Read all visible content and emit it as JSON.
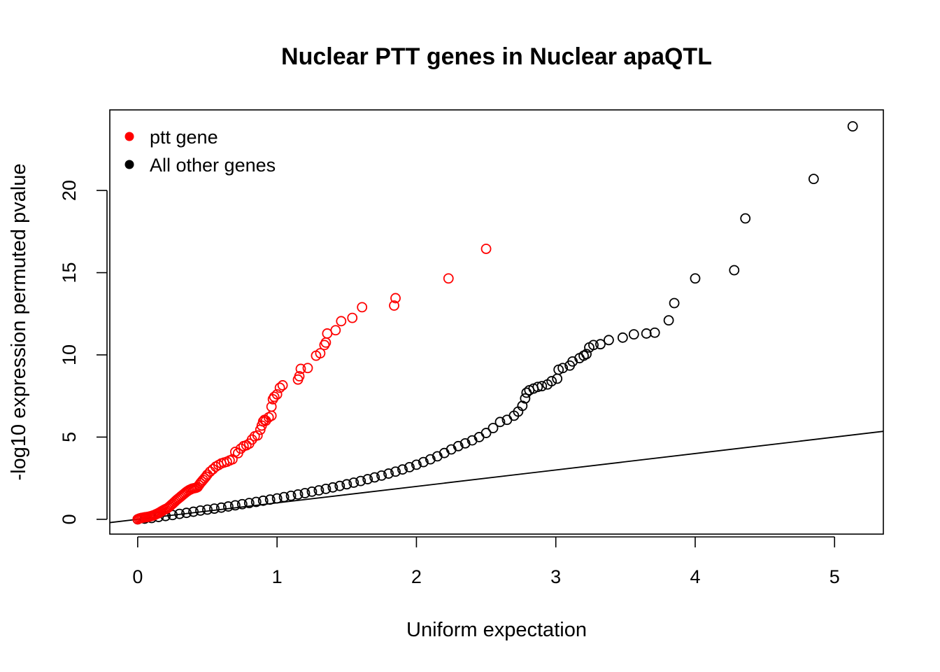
{
  "chart_data": {
    "type": "scatter",
    "title": "Nuclear PTT genes in Nuclear apaQTL",
    "xlabel": "Uniform expectation",
    "ylabel": "-log10 expression permuted pvalue",
    "xlim": [
      -0.2,
      5.35
    ],
    "ylim": [
      -0.9,
      24.9
    ],
    "x_ticks": [
      0,
      1,
      2,
      3,
      4,
      5
    ],
    "y_ticks": [
      0,
      5,
      10,
      15,
      20
    ],
    "grid": false,
    "legend_position": "top-left",
    "reference_line": {
      "slope": 1,
      "intercept": 0,
      "color": "#000000"
    },
    "series": [
      {
        "name": "ptt gene",
        "color": "#ff0000",
        "marker": "open-circle",
        "points": [
          [
            0.0,
            0.0
          ],
          [
            0.01,
            0.04
          ],
          [
            0.02,
            0.07
          ],
          [
            0.03,
            0.09
          ],
          [
            0.04,
            0.1
          ],
          [
            0.05,
            0.12
          ],
          [
            0.06,
            0.13
          ],
          [
            0.07,
            0.14
          ],
          [
            0.08,
            0.16
          ],
          [
            0.09,
            0.18
          ],
          [
            0.1,
            0.2
          ],
          [
            0.11,
            0.23
          ],
          [
            0.12,
            0.26
          ],
          [
            0.13,
            0.3
          ],
          [
            0.14,
            0.34
          ],
          [
            0.15,
            0.38
          ],
          [
            0.16,
            0.43
          ],
          [
            0.17,
            0.48
          ],
          [
            0.18,
            0.53
          ],
          [
            0.19,
            0.58
          ],
          [
            0.2,
            0.62
          ],
          [
            0.21,
            0.66
          ],
          [
            0.22,
            0.72
          ],
          [
            0.23,
            0.79
          ],
          [
            0.24,
            0.87
          ],
          [
            0.25,
            0.94
          ],
          [
            0.26,
            1.02
          ],
          [
            0.27,
            1.1
          ],
          [
            0.28,
            1.18
          ],
          [
            0.29,
            1.25
          ],
          [
            0.3,
            1.32
          ],
          [
            0.31,
            1.39
          ],
          [
            0.32,
            1.46
          ],
          [
            0.33,
            1.53
          ],
          [
            0.34,
            1.6
          ],
          [
            0.35,
            1.67
          ],
          [
            0.36,
            1.73
          ],
          [
            0.37,
            1.78
          ],
          [
            0.38,
            1.82
          ],
          [
            0.39,
            1.86
          ],
          [
            0.4,
            1.88
          ],
          [
            0.41,
            1.9
          ],
          [
            0.42,
            1.92
          ],
          [
            0.43,
            1.96
          ],
          [
            0.44,
            2.08
          ],
          [
            0.45,
            2.2
          ],
          [
            0.46,
            2.3
          ],
          [
            0.47,
            2.4
          ],
          [
            0.48,
            2.5
          ],
          [
            0.49,
            2.6
          ],
          [
            0.5,
            2.72
          ],
          [
            0.52,
            2.9
          ],
          [
            0.54,
            3.05
          ],
          [
            0.56,
            3.2
          ],
          [
            0.58,
            3.3
          ],
          [
            0.6,
            3.4
          ],
          [
            0.62,
            3.45
          ],
          [
            0.64,
            3.5
          ],
          [
            0.66,
            3.58
          ],
          [
            0.68,
            3.65
          ],
          [
            0.7,
            4.1
          ],
          [
            0.72,
            4.02
          ],
          [
            0.74,
            4.3
          ],
          [
            0.76,
            4.45
          ],
          [
            0.78,
            4.5
          ],
          [
            0.8,
            4.6
          ],
          [
            0.82,
            4.85
          ],
          [
            0.84,
            5.05
          ],
          [
            0.86,
            5.1
          ],
          [
            0.88,
            5.45
          ],
          [
            0.89,
            5.7
          ],
          [
            0.9,
            5.95
          ],
          [
            0.91,
            6.05
          ],
          [
            0.92,
            6.0
          ],
          [
            0.94,
            6.2
          ],
          [
            0.96,
            6.3
          ],
          [
            0.96,
            6.85
          ],
          [
            0.97,
            7.3
          ],
          [
            0.98,
            7.45
          ],
          [
            1.0,
            7.6
          ],
          [
            1.02,
            8.0
          ],
          [
            1.04,
            8.15
          ],
          [
            1.15,
            8.5
          ],
          [
            1.16,
            8.7
          ],
          [
            1.17,
            9.15
          ],
          [
            1.22,
            9.2
          ],
          [
            1.28,
            9.95
          ],
          [
            1.31,
            10.1
          ],
          [
            1.34,
            10.6
          ],
          [
            1.35,
            10.75
          ],
          [
            1.36,
            11.3
          ],
          [
            1.42,
            11.5
          ],
          [
            1.46,
            12.05
          ],
          [
            1.54,
            12.25
          ],
          [
            1.61,
            12.9
          ],
          [
            1.84,
            13.0
          ],
          [
            1.85,
            13.45
          ],
          [
            2.23,
            14.65
          ],
          [
            2.5,
            16.45
          ]
        ]
      },
      {
        "name": "All other genes",
        "color": "#000000",
        "marker": "open-circle",
        "points": [
          [
            0.0,
            0.0
          ],
          [
            0.05,
            0.04
          ],
          [
            0.1,
            0.08
          ],
          [
            0.15,
            0.14
          ],
          [
            0.2,
            0.2
          ],
          [
            0.25,
            0.26
          ],
          [
            0.3,
            0.33
          ],
          [
            0.35,
            0.39
          ],
          [
            0.4,
            0.46
          ],
          [
            0.45,
            0.53
          ],
          [
            0.5,
            0.59
          ],
          [
            0.55,
            0.65
          ],
          [
            0.6,
            0.71
          ],
          [
            0.65,
            0.78
          ],
          [
            0.7,
            0.85
          ],
          [
            0.75,
            0.92
          ],
          [
            0.8,
            0.99
          ],
          [
            0.85,
            1.06
          ],
          [
            0.9,
            1.13
          ],
          [
            0.95,
            1.2
          ],
          [
            1.0,
            1.27
          ],
          [
            1.05,
            1.35
          ],
          [
            1.1,
            1.43
          ],
          [
            1.15,
            1.51
          ],
          [
            1.2,
            1.59
          ],
          [
            1.25,
            1.68
          ],
          [
            1.3,
            1.76
          ],
          [
            1.35,
            1.85
          ],
          [
            1.4,
            1.94
          ],
          [
            1.45,
            2.03
          ],
          [
            1.5,
            2.13
          ],
          [
            1.55,
            2.23
          ],
          [
            1.6,
            2.33
          ],
          [
            1.65,
            2.44
          ],
          [
            1.7,
            2.55
          ],
          [
            1.75,
            2.66
          ],
          [
            1.8,
            2.78
          ],
          [
            1.85,
            2.9
          ],
          [
            1.9,
            3.03
          ],
          [
            1.95,
            3.17
          ],
          [
            2.0,
            3.32
          ],
          [
            2.05,
            3.48
          ],
          [
            2.1,
            3.65
          ],
          [
            2.15,
            3.83
          ],
          [
            2.2,
            4.03
          ],
          [
            2.25,
            4.25
          ],
          [
            2.3,
            4.45
          ],
          [
            2.35,
            4.62
          ],
          [
            2.4,
            4.8
          ],
          [
            2.45,
            5.0
          ],
          [
            2.5,
            5.25
          ],
          [
            2.55,
            5.55
          ],
          [
            2.6,
            5.92
          ],
          [
            2.65,
            6.05
          ],
          [
            2.7,
            6.3
          ],
          [
            2.73,
            6.55
          ],
          [
            2.76,
            6.9
          ],
          [
            2.78,
            7.35
          ],
          [
            2.79,
            7.7
          ],
          [
            2.81,
            7.85
          ],
          [
            2.84,
            7.95
          ],
          [
            2.87,
            8.05
          ],
          [
            2.9,
            8.1
          ],
          [
            2.94,
            8.2
          ],
          [
            2.97,
            8.4
          ],
          [
            3.01,
            8.55
          ],
          [
            3.02,
            9.1
          ],
          [
            3.05,
            9.2
          ],
          [
            3.1,
            9.35
          ],
          [
            3.12,
            9.6
          ],
          [
            3.17,
            9.8
          ],
          [
            3.2,
            9.95
          ],
          [
            3.22,
            10.05
          ],
          [
            3.24,
            10.45
          ],
          [
            3.27,
            10.6
          ],
          [
            3.32,
            10.65
          ],
          [
            3.38,
            10.9
          ],
          [
            3.48,
            11.05
          ],
          [
            3.56,
            11.25
          ],
          [
            3.65,
            11.3
          ],
          [
            3.71,
            11.35
          ],
          [
            3.81,
            12.1
          ],
          [
            3.85,
            13.15
          ],
          [
            4.0,
            14.65
          ],
          [
            4.28,
            15.15
          ],
          [
            4.36,
            18.3
          ],
          [
            4.85,
            20.7
          ],
          [
            5.13,
            23.9
          ]
        ]
      }
    ]
  }
}
